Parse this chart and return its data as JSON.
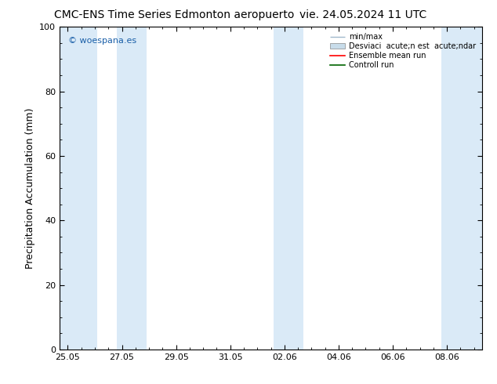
{
  "title_left": "CMC-ENS Time Series Edmonton aeropuerto",
  "title_right": "vie. 24.05.2024 11 UTC",
  "ylabel": "Precipitation Accumulation (mm)",
  "ylim": [
    0,
    100
  ],
  "yticks": [
    0,
    20,
    40,
    60,
    80,
    100
  ],
  "background_color": "#ffffff",
  "plot_bg_color": "#ffffff",
  "band_color": "#daeaf7",
  "shaded_bands": [
    [
      -0.3,
      1.1
    ],
    [
      1.8,
      2.9
    ],
    [
      7.6,
      8.7
    ],
    [
      13.8,
      15.5
    ]
  ],
  "xtick_labels": [
    "25.05",
    "27.05",
    "29.05",
    "31.05",
    "02.06",
    "04.06",
    "06.06",
    "08.06"
  ],
  "xtick_values": [
    0,
    2,
    4,
    6,
    8,
    10,
    12,
    14
  ],
  "xlim": [
    -0.3,
    15.3
  ],
  "watermark": "© woespana.es",
  "legend_minmax": "min/max",
  "legend_std": "Desviaci  acute;n est  acute;ndar",
  "legend_ens": "Ensemble mean run",
  "legend_ctrl": "Controll run",
  "minmax_color": "#a0b8cc",
  "std_color": "#c8dcea",
  "ens_color": "#ff0000",
  "ctrl_color": "#006400",
  "title_fontsize": 10,
  "tick_fontsize": 8,
  "ylabel_fontsize": 9,
  "watermark_color": "#1a5fa8",
  "watermark_fontsize": 8,
  "legend_fontsize": 7
}
